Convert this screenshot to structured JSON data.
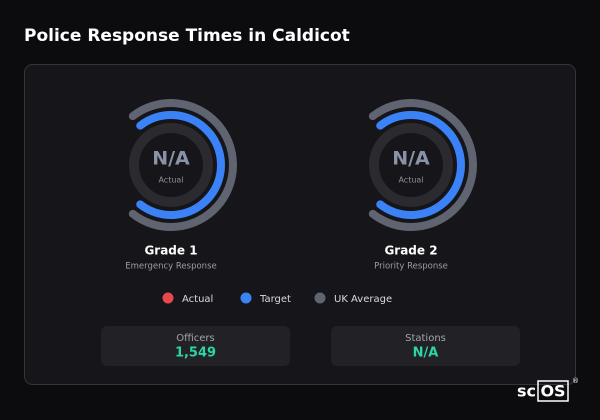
{
  "header": {
    "title": "Police Response Times in Caldicot"
  },
  "gauges": [
    {
      "value": "N/A",
      "value_caption": "Actual",
      "title": "Grade 1",
      "subtitle": "Emergency Response"
    },
    {
      "value": "N/A",
      "value_caption": "Actual",
      "title": "Grade 2",
      "subtitle": "Priority Response"
    }
  ],
  "legend": [
    {
      "label": "Actual",
      "color": "#e5484d"
    },
    {
      "label": "Target",
      "color": "#3b82f6"
    },
    {
      "label": "UK Average",
      "color": "#5f6470"
    }
  ],
  "stats": [
    {
      "label": "Officers",
      "value": "1,549"
    },
    {
      "label": "Stations",
      "value": "N/A"
    }
  ],
  "brand": {
    "prefix": "sc",
    "boxed": "OS",
    "mark": "®"
  }
}
